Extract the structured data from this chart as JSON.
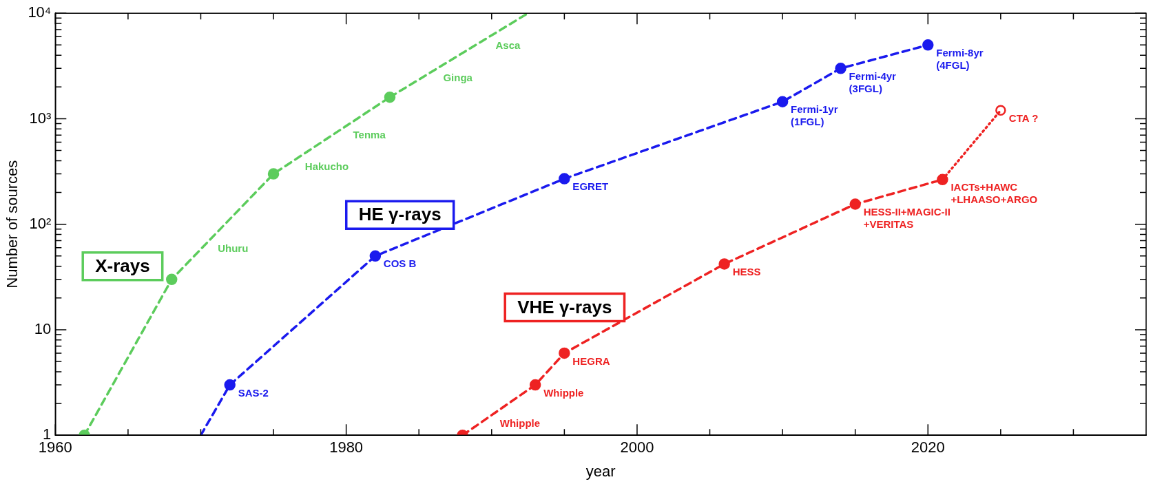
{
  "chart_data": {
    "type": "line",
    "xlabel": "year",
    "ylabel": "Number of sources",
    "log": "y",
    "legend": false,
    "xlim": [
      1960,
      2035
    ],
    "xticks": [
      1960,
      {
        "value": 1965,
        "label": null
      },
      {
        "value": 1970,
        "label": null
      },
      {
        "value": 1975,
        "label": null
      },
      1980,
      {
        "value": 1985,
        "label": null
      },
      {
        "value": 1990,
        "label": null
      },
      {
        "value": 1995,
        "label": null
      },
      2000,
      {
        "value": 2005,
        "label": null
      },
      {
        "value": 2010,
        "label": null
      },
      {
        "value": 2015,
        "label": null
      },
      2020,
      {
        "value": 2025,
        "label": null
      },
      {
        "value": 2030,
        "label": null
      }
    ],
    "ylim": [
      1,
      10000
    ],
    "yticks": [
      1,
      {
        "value": 2,
        "label": null
      },
      {
        "value": 3,
        "label": null
      },
      {
        "value": 4,
        "label": null
      },
      {
        "value": 5,
        "label": null
      },
      {
        "value": 6,
        "label": null
      },
      {
        "value": 7,
        "label": null
      },
      {
        "value": 8,
        "label": null
      },
      {
        "value": 9,
        "label": null
      },
      10,
      {
        "value": 20,
        "label": null
      },
      {
        "value": 30,
        "label": null
      },
      {
        "value": 40,
        "label": null
      },
      {
        "value": 50,
        "label": null
      },
      {
        "value": 60,
        "label": null
      },
      {
        "value": 70,
        "label": null
      },
      {
        "value": 80,
        "label": null
      },
      {
        "value": 90,
        "label": null
      },
      {
        "value": 100,
        "label": "10²"
      },
      {
        "value": 200,
        "label": null
      },
      {
        "value": 300,
        "label": null
      },
      {
        "value": 400,
        "label": null
      },
      {
        "value": 500,
        "label": null
      },
      {
        "value": 600,
        "label": null
      },
      {
        "value": 700,
        "label": null
      },
      {
        "value": 800,
        "label": null
      },
      {
        "value": 900,
        "label": null
      },
      {
        "value": 1000,
        "label": "10³"
      },
      {
        "value": 2000,
        "label": null
      },
      {
        "value": 3000,
        "label": null
      },
      {
        "value": 4000,
        "label": null
      },
      {
        "value": 5000,
        "label": null
      },
      {
        "value": 6000,
        "label": null
      },
      {
        "value": 7000,
        "label": null
      },
      {
        "value": 8000,
        "label": null
      },
      {
        "value": 9000,
        "label": null
      },
      {
        "value": 10000,
        "label": "10⁴"
      }
    ],
    "series": [
      {
        "name": "X-rays",
        "color": "#5ccc5c",
        "x": [
          1962,
          1968,
          1975,
          1983
        ],
        "values": [
          1,
          30,
          300,
          1600
        ],
        "marker": "circle",
        "line_style": "dashed"
      },
      {
        "color": "#5ccc5c",
        "x": [
          1983,
          1992.5
        ],
        "values": [
          1600,
          10000
        ],
        "line_style": "dashed"
      },
      {
        "color": "#1a1aee",
        "x": [
          1970,
          1972
        ],
        "values": [
          1,
          3
        ],
        "line_style": "dashed"
      },
      {
        "name": "HE γ-rays",
        "color": "#1a1aee",
        "x": [
          1972,
          1982,
          1995,
          2010,
          2014,
          2020
        ],
        "values": [
          3,
          50,
          270,
          1450,
          3000,
          5000
        ],
        "marker": "circle",
        "line_style": "dashed"
      },
      {
        "name": "VHE γ-rays",
        "color": "#ee2222",
        "x": [
          1988,
          1993,
          1995,
          2006,
          2015,
          2021
        ],
        "values": [
          1,
          3,
          6,
          42,
          155,
          265
        ],
        "marker": "circle",
        "line_style": "dashed"
      },
      {
        "color": "#ee2222",
        "x": [
          2021,
          2025
        ],
        "values": [
          265,
          1200
        ],
        "line_style": "dotted"
      },
      {
        "type": "scatter",
        "color": "#ee2222",
        "x": [
          2025
        ],
        "values": [
          1200
        ],
        "marker": "circle"
      }
    ],
    "annotations": [
      {
        "text": "Uhuru",
        "x": 1970.6,
        "y": 70
      },
      {
        "text": "Hakucho",
        "x": 1976.6,
        "y": 420
      },
      {
        "text": "Tenma",
        "x": 1979.9,
        "y": 830
      },
      {
        "text": "Ginga",
        "x": 1986.1,
        "y": 2900
      },
      {
        "text": "Asca",
        "x": 1989.7,
        "y": 5900
      },
      {
        "text": "SAS-2",
        "x": 1972,
        "y": 3
      },
      {
        "text": "COS B",
        "x": 1982,
        "y": 50
      },
      {
        "text": "EGRET",
        "x": 1995,
        "y": 270
      },
      {
        "text": "Fermi-1yr\n(1FGL)",
        "x": 2010,
        "y": 1450
      },
      {
        "text": "Fermi-4yr\n(3FGL)",
        "x": 2014,
        "y": 3000
      },
      {
        "text": "Fermi-8yr\n(4FGL)",
        "x": 2020,
        "y": 5000
      },
      {
        "text": "Whipple",
        "x": 1990,
        "y": 1.55
      },
      {
        "text": "Whipple",
        "x": 1993,
        "y": 3
      },
      {
        "text": "HEGRA",
        "x": 1995,
        "y": 6
      },
      {
        "text": "HESS",
        "x": 2006,
        "y": 42
      },
      {
        "text": "HESS-II+MAGIC-II\n+VERITAS",
        "x": 2015,
        "y": 155
      },
      {
        "text": "IACTs+HAWC\n+LHAASO+ARGO",
        "x": 2021,
        "y": 265
      },
      {
        "text": "CTA ?",
        "x": 2025,
        "y": 1200
      }
    ]
  }
}
